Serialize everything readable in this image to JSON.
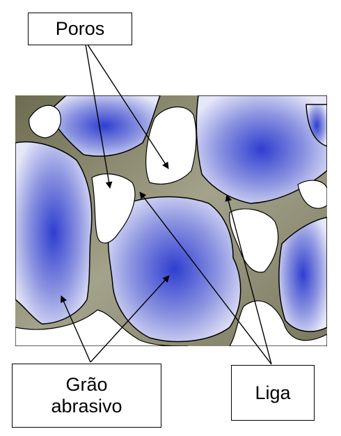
{
  "labels": {
    "pores": "Poros",
    "grain_line1": "Grão",
    "grain_line2": "abrasivo",
    "bond": "Liga"
  },
  "colors": {
    "grain_center": "#2f3ed0",
    "grain_edge": "#e3e5f7",
    "bond": "#8b8a6c",
    "bond_dark": "#6f6e52",
    "pore": "#ffffff",
    "outline": "#000000"
  }
}
